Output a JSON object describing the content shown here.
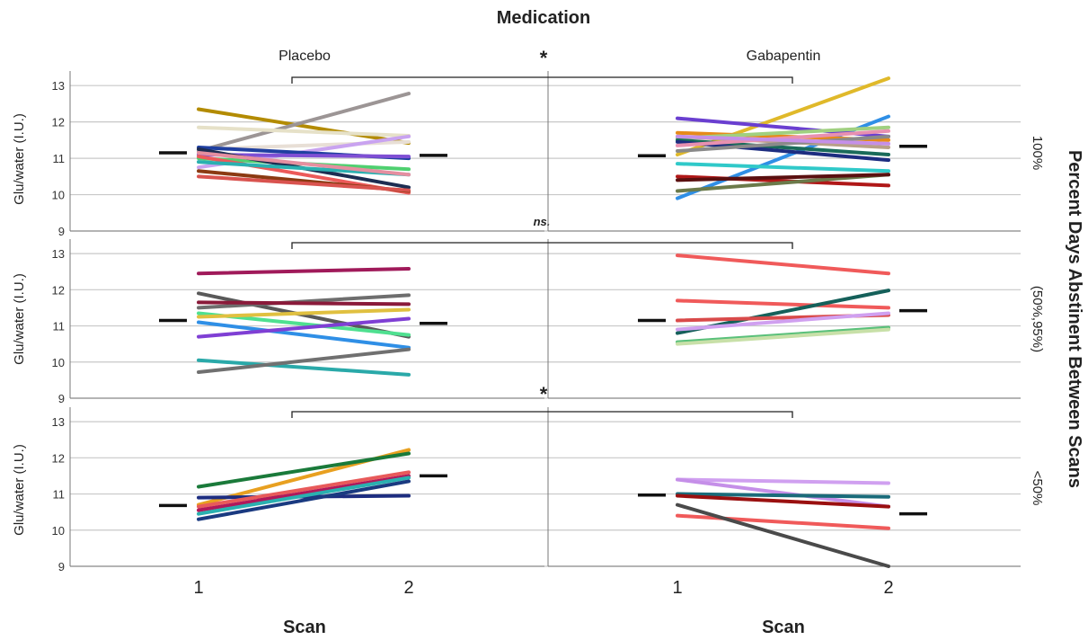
{
  "figure": {
    "top_title": "Medication",
    "row_title": "Percent Days Abstinent Between Scans",
    "x_label": "Scan",
    "y_label": "Glu/water (I.U.)"
  },
  "chart_data": {
    "type": "line",
    "x": [
      1,
      2
    ],
    "x_ticks": [
      "1",
      "2"
    ],
    "y_ticks": [
      "9",
      "10",
      "11",
      "12",
      "13"
    ],
    "ylim": [
      9,
      13.4
    ],
    "grid": true,
    "columns": [
      "Placebo",
      "Gabapentin"
    ],
    "rows": [
      "100%",
      "(50%,95%)",
      "<50%"
    ],
    "row_comparisons": [
      "*",
      "ns.",
      "*"
    ],
    "panels": [
      {
        "row": "100%",
        "column": "Placebo",
        "mean_scan1": 11.15,
        "mean_scan2": 11.08,
        "subjects": [
          {
            "values": [
              12.35,
              11.42
            ],
            "color": "#b38b00"
          },
          {
            "values": [
              11.2,
              12.78
            ],
            "color": "#9c9595"
          },
          {
            "values": [
              11.85,
              11.62
            ],
            "color": "#e6e1c8"
          },
          {
            "values": [
              11.25,
              11.45
            ],
            "color": "#e8dfd6"
          },
          {
            "values": [
              10.75,
              11.6
            ],
            "color": "#c9a3f0"
          },
          {
            "values": [
              11.3,
              11.0
            ],
            "color": "#1f3fa0"
          },
          {
            "values": [
              11.1,
              11.05
            ],
            "color": "#7f4fd4"
          },
          {
            "values": [
              11.0,
              10.7
            ],
            "color": "#4fd070"
          },
          {
            "values": [
              11.25,
              10.2
            ],
            "color": "#1d2d52"
          },
          {
            "values": [
              11.05,
              10.05
            ],
            "color": "#ec5a5a"
          },
          {
            "values": [
              10.9,
              10.55
            ],
            "color": "#2ab0b0"
          },
          {
            "values": [
              10.65,
              10.1
            ],
            "color": "#8b3a12"
          },
          {
            "values": [
              10.5,
              10.12
            ],
            "color": "#d9534f"
          },
          {
            "values": [
              11.15,
              10.55
            ],
            "color": "#e58fa0"
          }
        ]
      },
      {
        "row": "100%",
        "column": "Gabapentin",
        "mean_scan1": 11.07,
        "mean_scan2": 11.33,
        "subjects": [
          {
            "values": [
              11.1,
              13.2
            ],
            "color": "#e0b92a"
          },
          {
            "values": [
              9.9,
              12.15
            ],
            "color": "#2f8fe6"
          },
          {
            "values": [
              12.1,
              11.6
            ],
            "color": "#6a3fd0"
          },
          {
            "values": [
              11.7,
              11.5
            ],
            "color": "#e68a1a"
          },
          {
            "values": [
              11.6,
              11.3
            ],
            "color": "#b8a089"
          },
          {
            "values": [
              11.55,
              11.85
            ],
            "color": "#a0d080"
          },
          {
            "values": [
              11.5,
              11.1
            ],
            "color": "#1a6b5a"
          },
          {
            "values": [
              11.45,
              10.95
            ],
            "color": "#1d2d80"
          },
          {
            "values": [
              11.35,
              11.75
            ],
            "color": "#e890b0"
          },
          {
            "values": [
              10.85,
              10.65
            ],
            "color": "#30c9c9"
          },
          {
            "values": [
              10.5,
              10.25
            ],
            "color": "#b01818"
          },
          {
            "values": [
              10.1,
              10.55
            ],
            "color": "#6b7a4a"
          },
          {
            "values": [
              10.4,
              10.55
            ],
            "color": "#5a1010"
          },
          {
            "values": [
              11.2,
              11.6
            ],
            "color": "#8a8a8a"
          },
          {
            "values": [
              11.6,
              11.4
            ],
            "color": "#c58fe8"
          }
        ]
      },
      {
        "row": "(50%,95%)",
        "column": "Placebo",
        "mean_scan1": 11.15,
        "mean_scan2": 11.07,
        "subjects": [
          {
            "values": [
              12.45,
              12.58
            ],
            "color": "#a01a5a"
          },
          {
            "values": [
              11.9,
              10.7
            ],
            "color": "#595959"
          },
          {
            "values": [
              11.5,
              11.85
            ],
            "color": "#6e6e6e"
          },
          {
            "values": [
              11.65,
              11.6
            ],
            "color": "#8a1a3a"
          },
          {
            "values": [
              11.35,
              10.75
            ],
            "color": "#4fe090"
          },
          {
            "values": [
              11.25,
              11.45
            ],
            "color": "#e0c040"
          },
          {
            "values": [
              11.1,
              10.4
            ],
            "color": "#2f8fe6"
          },
          {
            "values": [
              10.7,
              11.2
            ],
            "color": "#7f3fd4"
          },
          {
            "values": [
              10.05,
              9.65
            ],
            "color": "#2aa9a9"
          },
          {
            "values": [
              9.72,
              10.35
            ],
            "color": "#707070"
          }
        ]
      },
      {
        "row": "(50%,95%)",
        "column": "Gabapentin",
        "mean_scan1": 11.15,
        "mean_scan2": 11.42,
        "subjects": [
          {
            "values": [
              12.95,
              12.45
            ],
            "color": "#f05a5a"
          },
          {
            "values": [
              11.7,
              11.5
            ],
            "color": "#f05a5a"
          },
          {
            "values": [
              10.8,
              11.98
            ],
            "color": "#15605a"
          },
          {
            "values": [
              11.15,
              11.3
            ],
            "color": "#d94a4a"
          },
          {
            "values": [
              10.9,
              11.35
            ],
            "color": "#d0a0f0"
          },
          {
            "values": [
              10.55,
              10.95
            ],
            "color": "#5ac07a"
          },
          {
            "values": [
              10.5,
              10.9
            ],
            "color": "#c8e0a8"
          }
        ]
      },
      {
        "row": "<50%",
        "column": "Placebo",
        "mean_scan1": 10.68,
        "mean_scan2": 11.5,
        "subjects": [
          {
            "values": [
              10.7,
              12.22
            ],
            "color": "#e8a020"
          },
          {
            "values": [
              11.2,
              12.12
            ],
            "color": "#1a7a3a"
          },
          {
            "values": [
              10.9,
              10.95
            ],
            "color": "#1d2d80"
          },
          {
            "values": [
              10.65,
              11.6
            ],
            "color": "#e85a5a"
          },
          {
            "values": [
              10.55,
              11.5
            ],
            "color": "#b0185a"
          },
          {
            "values": [
              10.45,
              11.45
            ],
            "color": "#2ab0b0"
          },
          {
            "values": [
              10.3,
              11.35
            ],
            "color": "#1a3a80"
          }
        ]
      },
      {
        "row": "<50%",
        "column": "Gabapentin",
        "mean_scan1": 10.97,
        "mean_scan2": 10.45,
        "subjects": [
          {
            "values": [
              11.4,
              11.3
            ],
            "color": "#d0a0f0"
          },
          {
            "values": [
              11.4,
              10.65
            ],
            "color": "#c58fe8"
          },
          {
            "values": [
              11.0,
              10.92
            ],
            "color": "#1a6b7a"
          },
          {
            "values": [
              10.95,
              10.65
            ],
            "color": "#9a1010"
          },
          {
            "values": [
              10.4,
              10.05
            ],
            "color": "#f05a5a"
          },
          {
            "values": [
              10.7,
              9.0
            ],
            "color": "#4a4a4a"
          }
        ]
      }
    ]
  }
}
